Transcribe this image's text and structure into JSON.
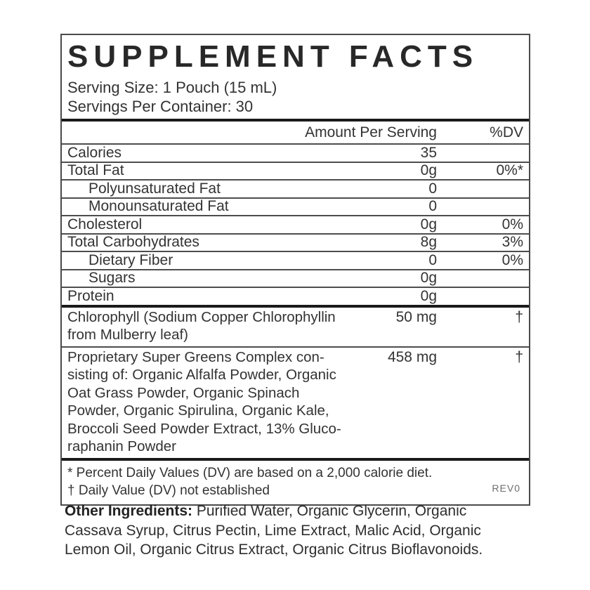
{
  "panel": {
    "title": "SUPPLEMENT FACTS",
    "serving_size": "Serving Size: 1 Pouch (15 mL)",
    "servings_per_container": "Servings Per Container: 30",
    "columns": {
      "amount": "Amount Per Serving",
      "dv": "%DV"
    },
    "rows": [
      {
        "name": "Calories",
        "amount": "35",
        "dv": "",
        "indent": false
      },
      {
        "name": "Total Fat",
        "amount": "0g",
        "dv": "0%*",
        "indent": false
      },
      {
        "name": "Polyunsaturated Fat",
        "amount": "0",
        "dv": "",
        "indent": true
      },
      {
        "name": "Monounsaturated Fat",
        "amount": "0",
        "dv": "",
        "indent": true
      },
      {
        "name": "Cholesterol",
        "amount": "0g",
        "dv": "0%",
        "indent": false
      },
      {
        "name": "Total Carbohydrates",
        "amount": "8g",
        "dv": "3%",
        "indent": false
      },
      {
        "name": "Dietary Fiber",
        "amount": "0",
        "dv": "0%",
        "indent": true
      },
      {
        "name": "Sugars",
        "amount": "0g",
        "dv": "",
        "indent": true
      },
      {
        "name": "Protein",
        "amount": "0g",
        "dv": "",
        "indent": false
      }
    ],
    "complex_rows": [
      {
        "name": "Chlorophyll (Sodium Copper Chlorophyllin\nfrom Mulberry leaf)",
        "amount": "50 mg",
        "dv": "†"
      },
      {
        "name": "Proprietary Super Greens Complex con-\nsisting of: Organic Alfalfa Powder, Organic\nOat Grass Powder, Organic Spinach\nPowder, Organic Spirulina, Organic Kale,\nBroccoli Seed Powder Extract, 13% Gluco-\nraphanin Powder",
        "amount": "458 mg",
        "dv": "†"
      }
    ],
    "footnotes": [
      "* Percent Daily Values (DV) are based on a 2,000 calorie diet.",
      "† Daily Value (DV) not established"
    ],
    "revision": "REV0"
  },
  "other_ingredients": {
    "label": "Other Ingredients:",
    "text": "Purified Water, Organic Glycerin, Organic\nCassava Syrup, Citrus Pectin, Lime Extract, Malic Acid, Organic\nLemon Oil, Organic Citrus Extract, Organic Citrus Bioflavonoids."
  },
  "colors": {
    "text": "#2e2e2e",
    "title": "#282828",
    "thin_rule": "#4d4d4d",
    "thick_rule": "#1a1a1a",
    "box_border": "#4a4a4a",
    "revision_text": "#6e6e6e",
    "background": "#ffffff"
  }
}
